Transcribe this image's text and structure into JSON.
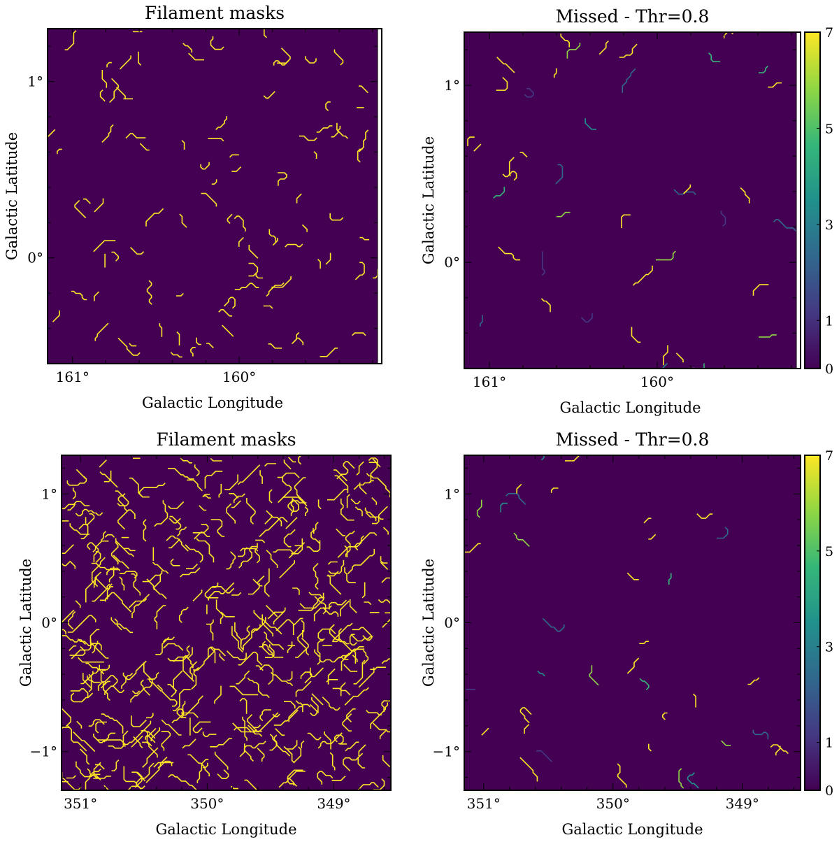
{
  "colors": {
    "background": "#440154",
    "filament": "#fde725",
    "frame": "#000000"
  },
  "colormap": [
    "#440154",
    "#443983",
    "#31688e",
    "#21918c",
    "#35b779",
    "#90d743",
    "#fde725"
  ],
  "chart_data": [
    {
      "type": "heatmap",
      "title": "Filament masks",
      "xlabel": "Galactic Longitude",
      "ylabel": "Galactic Latitude",
      "xlim": [
        161.15,
        159.17
      ],
      "ylim": [
        -0.6,
        1.3
      ],
      "xticks": [
        161,
        160
      ],
      "xtick_labels": [
        "161°",
        "160°"
      ],
      "yticks": [
        1,
        0
      ],
      "ytick_labels": [
        "1°",
        "0°"
      ],
      "colorbar": null,
      "seed": 11,
      "segments": 95,
      "value_range": [
        7,
        7
      ]
    },
    {
      "type": "heatmap",
      "title": "Missed - Thr=0.8",
      "xlabel": "Galactic Longitude",
      "ylabel": "Galactic Latitude",
      "xlim": [
        161.15,
        159.17
      ],
      "ylim": [
        -0.6,
        1.3
      ],
      "xticks": [
        161,
        160
      ],
      "xtick_labels": [
        "161°",
        "160°"
      ],
      "yticks": [
        1,
        0
      ],
      "ytick_labels": [
        "1°",
        "0°"
      ],
      "colorbar": {
        "ticks": [
          0,
          1,
          3,
          5,
          7
        ],
        "labels": [
          "0",
          "1",
          "3",
          "5",
          "7"
        ],
        "range": [
          0,
          7
        ]
      },
      "seed": 23,
      "segments": 48,
      "value_range": [
        1,
        7
      ]
    },
    {
      "type": "heatmap",
      "title": "Filament masks",
      "xlabel": "Galactic Longitude",
      "ylabel": "Galactic Latitude",
      "xlim": [
        351.15,
        348.55
      ],
      "ylim": [
        -1.3,
        1.3
      ],
      "xticks": [
        351,
        350,
        349
      ],
      "xtick_labels": [
        "351°",
        "350°",
        "349°"
      ],
      "yticks": [
        1,
        0,
        -1
      ],
      "ytick_labels": [
        "1°",
        "0°",
        "−1°"
      ],
      "colorbar": null,
      "seed": 37,
      "segments": 420,
      "value_range": [
        7,
        7
      ]
    },
    {
      "type": "heatmap",
      "title": "Missed - Thr=0.8",
      "xlabel": "Galactic Longitude",
      "ylabel": "Galactic Latitude",
      "xlim": [
        351.15,
        348.55
      ],
      "ylim": [
        -1.3,
        1.3
      ],
      "xticks": [
        351,
        350,
        349
      ],
      "xtick_labels": [
        "351°",
        "350°",
        "349°"
      ],
      "yticks": [
        1,
        0,
        -1
      ],
      "ytick_labels": [
        "1°",
        "0°",
        "−1°"
      ],
      "colorbar": {
        "ticks": [
          0,
          1,
          3,
          5,
          7
        ],
        "labels": [
          "0",
          "1",
          "3",
          "5",
          "7"
        ],
        "range": [
          0,
          7
        ]
      },
      "seed": 53,
      "segments": 40,
      "value_range": [
        1,
        7
      ]
    }
  ]
}
